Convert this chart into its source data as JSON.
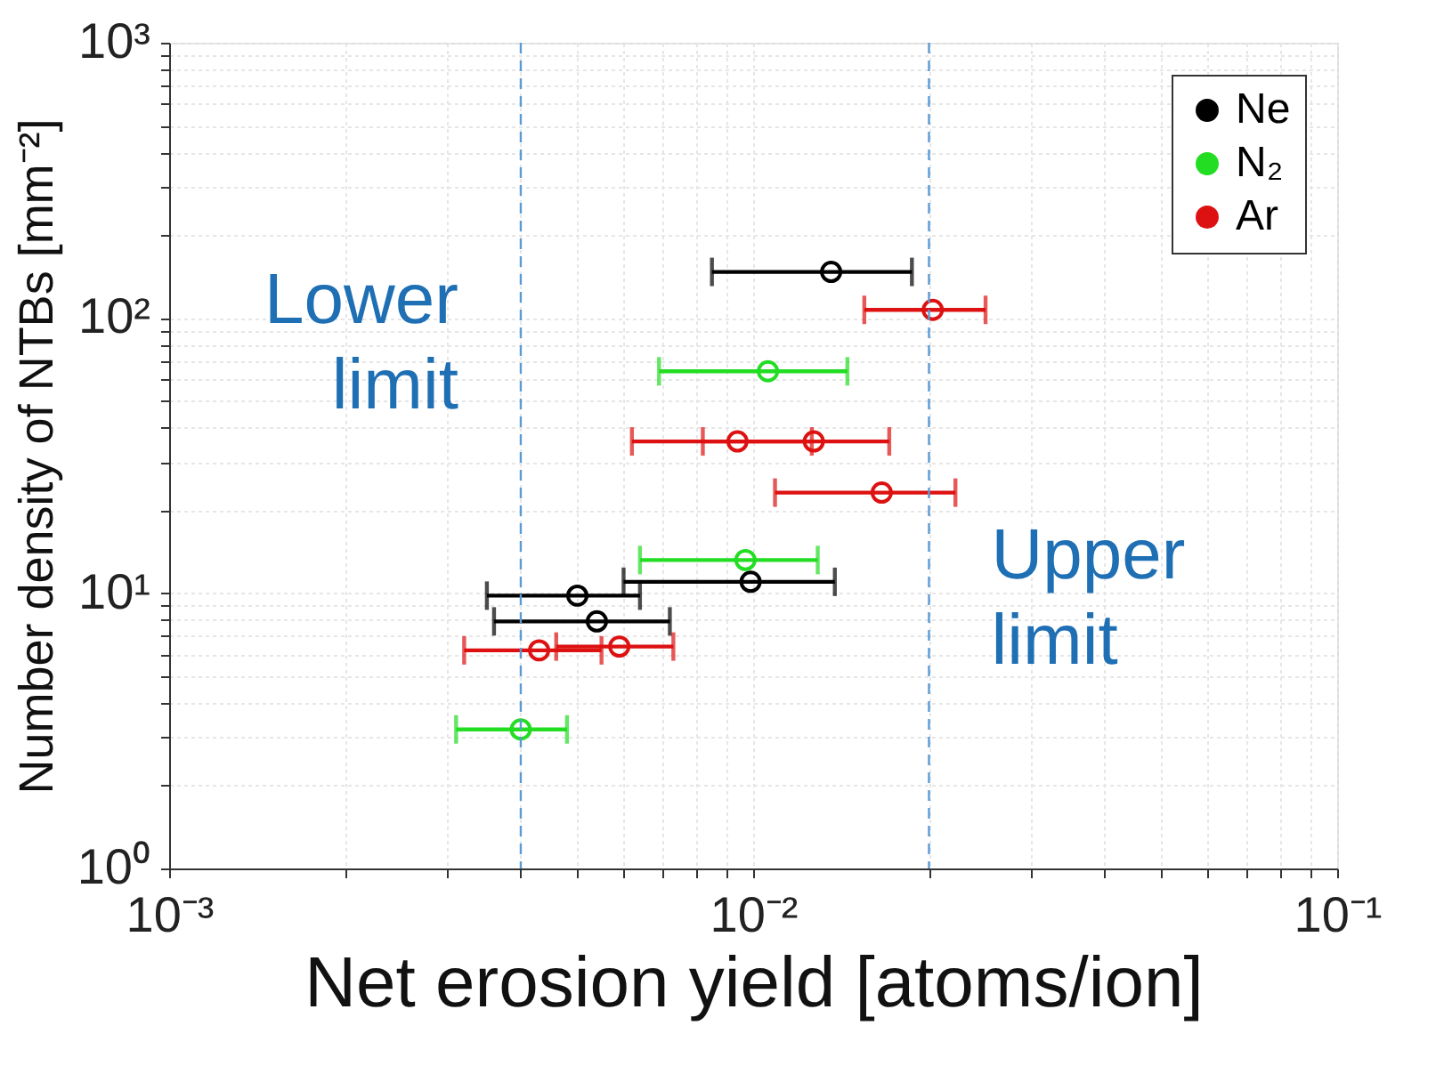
{
  "chart_data": {
    "type": "scatter",
    "xlabel": "Net erosion yield [atoms/ion]",
    "ylabel": "Number density of NTBs [mm⁻²]",
    "log": "xy",
    "grid": true,
    "legend": "top right",
    "marker": "circle",
    "xlim": [
      0.001,
      0.1
    ],
    "ylim": [
      1,
      1000
    ],
    "xticks": [
      {
        "value": 0.001,
        "label": "10⁻³"
      },
      {
        "value": 0.01,
        "label": "10⁻²"
      },
      {
        "value": 0.1,
        "label": "10⁻¹"
      }
    ],
    "yticks": [
      {
        "value": 1,
        "label": "10⁰"
      },
      {
        "value": 10,
        "label": "10¹"
      },
      {
        "value": 100,
        "label": "10²"
      },
      {
        "value": 1000,
        "label": "10³"
      }
    ],
    "ref_lines": [
      {
        "axis": "x",
        "value": 0.004,
        "label": "Lower limit",
        "color": "#5b9bd5",
        "line_style": "dashed"
      },
      {
        "axis": "x",
        "value": 0.02,
        "label": "Upper limit",
        "color": "#5b9bd5",
        "line_style": "dashed"
      }
    ],
    "series": [
      {
        "name": "Ne",
        "color": "#000000",
        "x": [
          0.0136,
          0.0099,
          0.005,
          0.0054
        ],
        "values": [
          147,
          11.0,
          9.8,
          7.9
        ],
        "xerrors": [
          [
            0.0085,
            0.0187
          ],
          [
            0.006,
            0.0138
          ],
          [
            0.0035,
            0.0064
          ],
          [
            0.0036,
            0.0072
          ]
        ]
      },
      {
        "name": "N₂",
        "color": "#22dd22",
        "x": [
          0.0106,
          0.0097,
          0.004
        ],
        "values": [
          64,
          13.2,
          3.2
        ],
        "xerrors": [
          [
            0.0069,
            0.0145
          ],
          [
            0.0064,
            0.0129
          ],
          [
            0.0031,
            0.0048
          ]
        ]
      },
      {
        "name": "Ar",
        "color": "#dd1111",
        "x": [
          0.0203,
          0.0094,
          0.0127,
          0.0166,
          0.0043,
          0.0059
        ],
        "values": [
          107,
          35.6,
          35.6,
          23.2,
          6.2,
          6.4
        ],
        "xerrors": [
          [
            0.0155,
            0.025
          ],
          [
            0.0062,
            0.0126
          ],
          [
            0.0082,
            0.0171
          ],
          [
            0.0109,
            0.0222
          ],
          [
            0.0032,
            0.0055
          ],
          [
            0.0046,
            0.0073
          ]
        ]
      }
    ]
  }
}
